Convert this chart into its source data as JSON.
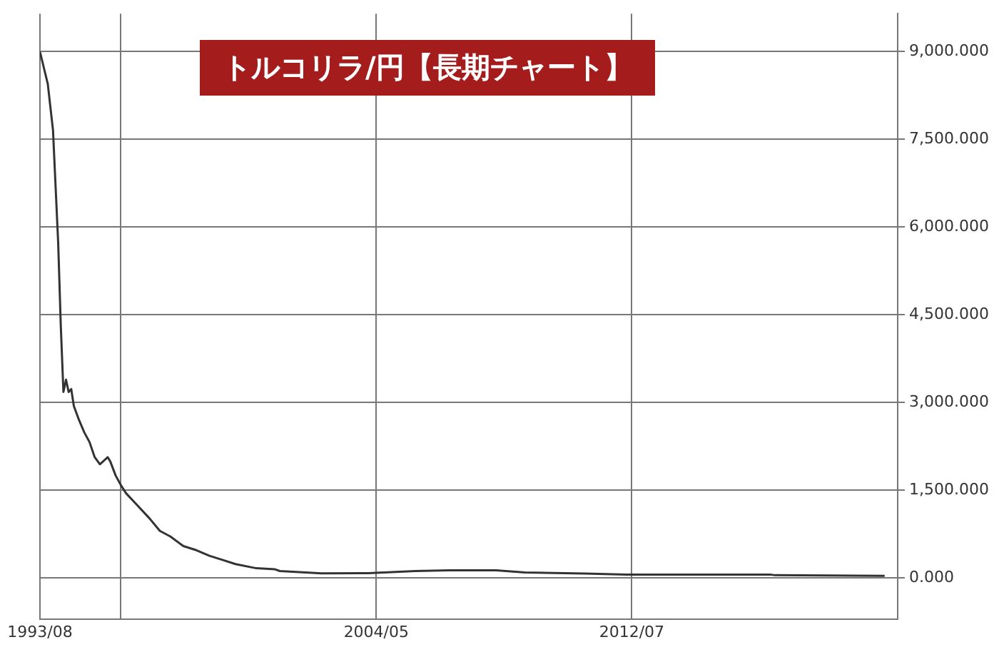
{
  "chart_data": {
    "type": "line",
    "title": "トルコリラ/円【長期チャート】",
    "x": [
      "1993-08",
      "1993-11",
      "1994-01",
      "1994-03",
      "1994-04",
      "1994-05",
      "1994-06",
      "1994-07",
      "1994-08",
      "1994-09",
      "1994-11",
      "1995-01",
      "1995-03",
      "1995-05",
      "1995-07",
      "1995-10",
      "1995-11",
      "1996-01",
      "1996-03",
      "1996-05",
      "1996-09",
      "1997-02",
      "1997-06",
      "1997-10",
      "1998-03",
      "1998-08",
      "1999-01",
      "1999-06",
      "1999-11",
      "2000-07",
      "2001-02",
      "2001-04",
      "2002-08",
      "2004-02",
      "2005-08",
      "2006-09",
      "2008-03",
      "2009-02",
      "2011-01",
      "2012-05",
      "2016-12",
      "2017-02",
      "2020-08"
    ],
    "series": [
      {
        "color": "#333333",
        "values": [
          9000,
          8450,
          7660,
          5720,
          4300,
          3180,
          3390,
          3180,
          3230,
          2940,
          2700,
          2490,
          2325,
          2065,
          1945,
          2065,
          1990,
          1755,
          1590,
          1450,
          1260,
          1020,
          805,
          710,
          545,
          475,
          380,
          310,
          237,
          166,
          150,
          119,
          78,
          83,
          119,
          130,
          130,
          95,
          76,
          59,
          59,
          47,
          36
        ]
      }
    ],
    "xlim": [
      "1993-08",
      "2021-01"
    ],
    "xticks": [
      {
        "value": "1993-08",
        "label": "1993/08"
      },
      {
        "value": "1996-03",
        "label": null
      },
      {
        "value": "2004-05",
        "label": "2004/05"
      },
      {
        "value": "2012-07",
        "label": "2012/07"
      }
    ],
    "ylim": [
      -700,
      9650
    ],
    "yticks": [
      {
        "value": 0,
        "label": "0.000"
      },
      {
        "value": 1500,
        "label": "1,500.000"
      },
      {
        "value": 3000,
        "label": "3,000.000"
      },
      {
        "value": 4500,
        "label": "4,500.000"
      },
      {
        "value": 6000,
        "label": "6,000.000"
      },
      {
        "value": 7500,
        "label": "7,500.000"
      },
      {
        "value": 9000,
        "label": "9,000.000"
      }
    ],
    "grid": true,
    "legend": false,
    "marker": "none",
    "line_style": "solid"
  }
}
